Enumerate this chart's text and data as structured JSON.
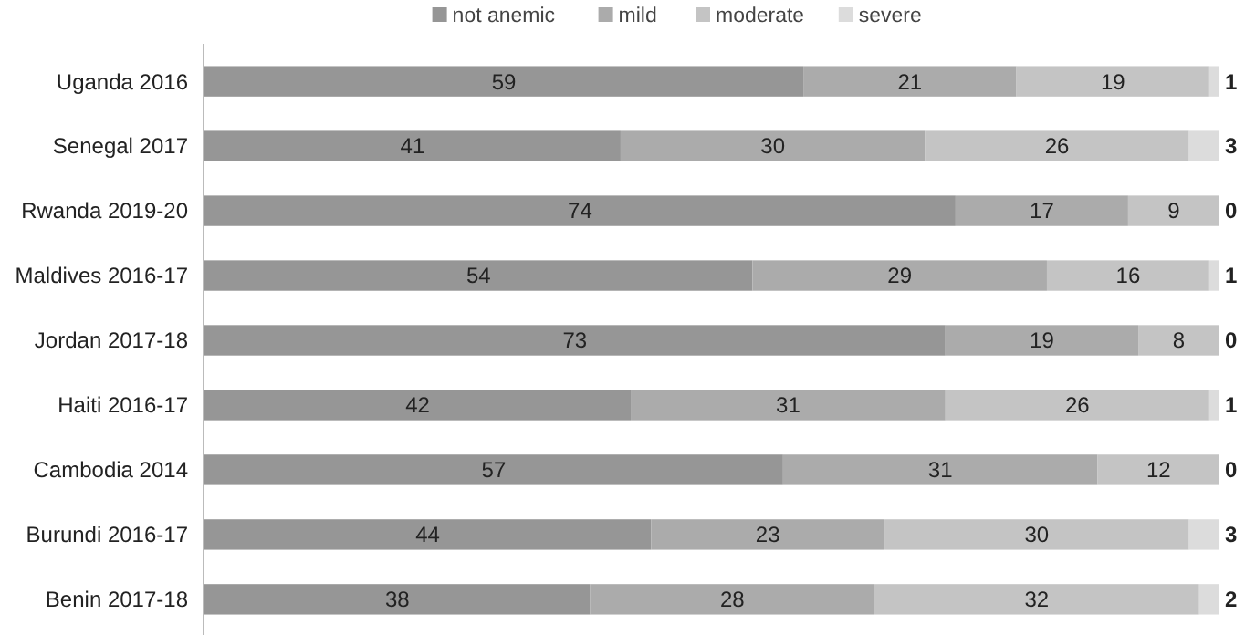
{
  "chart_data": {
    "type": "bar",
    "orientation": "horizontal",
    "stacked": true,
    "data_labels": true,
    "legend": "top",
    "categories": [
      "Uganda 2016",
      "Senegal 2017",
      "Rwanda 2019-20",
      "Maldives 2016-17",
      "Jordan 2017-18",
      "Haiti 2016-17",
      "Cambodia 2014",
      "Burundi 2016-17",
      "Benin 2017-18"
    ],
    "series": [
      {
        "name": "not anemic",
        "color": "#969696",
        "values": [
          59,
          41,
          74,
          54,
          73,
          42,
          57,
          44,
          38
        ]
      },
      {
        "name": "mild",
        "color": "#ababab",
        "values": [
          21,
          30,
          17,
          29,
          19,
          31,
          31,
          23,
          28
        ]
      },
      {
        "name": "moderate",
        "color": "#c4c4c4",
        "values": [
          19,
          26,
          9,
          16,
          8,
          26,
          12,
          30,
          32
        ]
      },
      {
        "name": "severe",
        "color": "#dcdcdc",
        "values": [
          1,
          3,
          0,
          1,
          0,
          1,
          0,
          3,
          2
        ]
      }
    ]
  }
}
